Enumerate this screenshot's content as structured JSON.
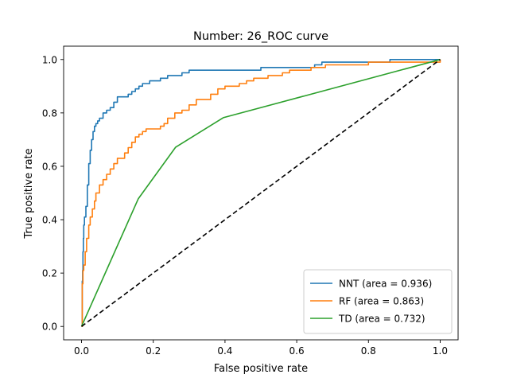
{
  "chart_data": {
    "type": "line",
    "title": "Number: 26_ROC curve",
    "xlabel": "False positive rate",
    "ylabel": "True positive rate",
    "xlim": [
      -0.05,
      1.05
    ],
    "ylim": [
      -0.05,
      1.05
    ],
    "xticks": [
      0.0,
      0.2,
      0.4,
      0.6,
      0.8,
      1.0
    ],
    "yticks": [
      0.0,
      0.2,
      0.4,
      0.6,
      0.8,
      1.0
    ],
    "xtick_labels": [
      "0.0",
      "0.2",
      "0.4",
      "0.6",
      "0.8",
      "1.0"
    ],
    "ytick_labels": [
      "0.0",
      "0.2",
      "0.4",
      "0.6",
      "0.8",
      "1.0"
    ],
    "grid": false,
    "legend_position": "bottom-right",
    "series": [
      {
        "name": "NNT (area = 0.936)",
        "color": "#1f77b4",
        "style": "step",
        "x": [
          0.0,
          0.002,
          0.003,
          0.004,
          0.005,
          0.006,
          0.008,
          0.012,
          0.016,
          0.02,
          0.024,
          0.028,
          0.032,
          0.036,
          0.04,
          0.045,
          0.05,
          0.06,
          0.07,
          0.08,
          0.09,
          0.1,
          0.11,
          0.13,
          0.14,
          0.15,
          0.16,
          0.17,
          0.18,
          0.19,
          0.2,
          0.22,
          0.24,
          0.26,
          0.28,
          0.3,
          0.4,
          0.5,
          0.65,
          0.67,
          0.75,
          0.83,
          0.85,
          0.86,
          1.0
        ],
        "y": [
          0.0,
          0.17,
          0.21,
          0.28,
          0.33,
          0.38,
          0.41,
          0.45,
          0.53,
          0.61,
          0.66,
          0.7,
          0.73,
          0.75,
          0.76,
          0.77,
          0.78,
          0.8,
          0.81,
          0.82,
          0.84,
          0.86,
          0.86,
          0.87,
          0.88,
          0.89,
          0.9,
          0.91,
          0.91,
          0.92,
          0.92,
          0.93,
          0.94,
          0.94,
          0.95,
          0.96,
          0.96,
          0.97,
          0.98,
          0.99,
          0.99,
          0.99,
          0.99,
          1.0,
          1.0
        ]
      },
      {
        "name": "RF (area = 0.863)",
        "color": "#ff7f0e",
        "style": "step",
        "x": [
          0.0,
          0.002,
          0.004,
          0.006,
          0.01,
          0.014,
          0.02,
          0.024,
          0.03,
          0.036,
          0.04,
          0.05,
          0.06,
          0.07,
          0.08,
          0.09,
          0.1,
          0.12,
          0.13,
          0.14,
          0.15,
          0.16,
          0.17,
          0.18,
          0.2,
          0.22,
          0.23,
          0.24,
          0.26,
          0.28,
          0.3,
          0.32,
          0.36,
          0.38,
          0.4,
          0.44,
          0.46,
          0.48,
          0.52,
          0.56,
          0.58,
          0.64,
          0.68,
          0.75,
          0.8,
          0.9,
          1.0
        ],
        "y": [
          0.0,
          0.16,
          0.21,
          0.23,
          0.28,
          0.33,
          0.38,
          0.41,
          0.44,
          0.47,
          0.5,
          0.53,
          0.55,
          0.57,
          0.59,
          0.61,
          0.63,
          0.65,
          0.67,
          0.69,
          0.71,
          0.72,
          0.73,
          0.74,
          0.74,
          0.75,
          0.76,
          0.78,
          0.8,
          0.81,
          0.83,
          0.85,
          0.87,
          0.89,
          0.9,
          0.91,
          0.92,
          0.93,
          0.94,
          0.95,
          0.96,
          0.97,
          0.98,
          0.98,
          0.99,
          0.99,
          1.0
        ]
      },
      {
        "name": "TD (area = 0.732)",
        "color": "#2ca02c",
        "style": "line",
        "x": [
          0.0,
          0.158,
          0.262,
          0.395,
          1.0
        ],
        "y": [
          0.0,
          0.478,
          0.671,
          0.782,
          1.0
        ]
      },
      {
        "name": "",
        "color": "#000000",
        "style": "dashed",
        "x": [
          0.0,
          1.0
        ],
        "y": [
          0.0,
          1.0
        ]
      }
    ]
  }
}
